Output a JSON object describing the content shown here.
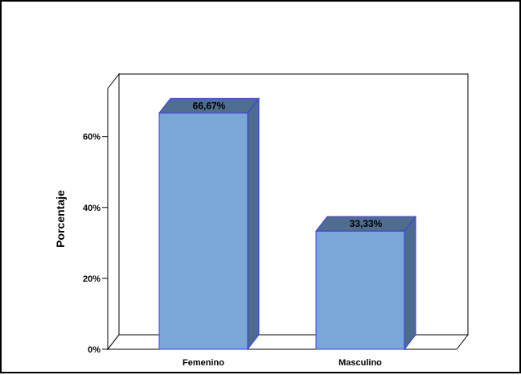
{
  "chart_data": {
    "type": "bar",
    "categories": [
      "Femenino",
      "Masculino"
    ],
    "values": [
      66.67,
      33.33
    ],
    "data_labels": [
      "66,67%",
      "33,33%"
    ],
    "ylabel": "Porcentaje",
    "xlabel": "",
    "ylim": [
      0,
      70
    ],
    "yticks": [
      {
        "value": 0,
        "label": "0%"
      },
      {
        "value": 20,
        "label": "20%"
      },
      {
        "value": 40,
        "label": "40%"
      },
      {
        "value": 60,
        "label": "60%"
      }
    ],
    "grid": false,
    "legend": "none",
    "three_d": true,
    "colors": {
      "bar_front": "#7ba7d6",
      "bar_side": "#4d6b8c",
      "bar_top": "#4f6d8e",
      "bar_edge": "#3b3be8"
    }
  }
}
